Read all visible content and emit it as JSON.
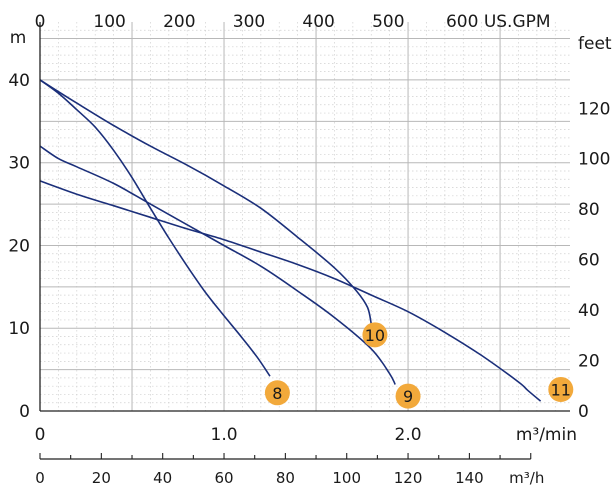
{
  "chart_data": {
    "type": "line",
    "title": "",
    "colors": {
      "curve": "#1b2f7a",
      "badge": "#f2a93b",
      "grid_major": "#b8b8b8",
      "grid_minor": "#d0d0d0",
      "axis": "#222222"
    },
    "axes": {
      "left": {
        "unit": "m",
        "range": [
          0,
          47
        ],
        "ticks": [
          0,
          10,
          20,
          30,
          40
        ],
        "tick_labels": [
          "0",
          "10",
          "20",
          "30",
          "40"
        ]
      },
      "right": {
        "unit": "feet",
        "ticks": [
          0,
          20,
          40,
          60,
          80,
          100,
          120
        ],
        "tick_labels": [
          "0",
          "20",
          "40",
          "60",
          "80",
          "100",
          "120"
        ]
      },
      "top": {
        "ticks": [
          0,
          100,
          200,
          300,
          400,
          500,
          600
        ],
        "tick_labels": [
          "0",
          "100",
          "200",
          "300",
          "400",
          "500",
          "600 US.GPM"
        ]
      },
      "bottom": {
        "unit": "m³/min",
        "range": [
          0,
          2.88
        ],
        "ticks": [
          0,
          1.0,
          2.0
        ],
        "tick_labels": [
          "0",
          "1.0",
          "2.0"
        ]
      },
      "lower": {
        "unit": "m³/h",
        "ticks": [
          0,
          20,
          40,
          60,
          80,
          100,
          120,
          140
        ],
        "tick_labels": [
          "0",
          "20",
          "40",
          "60",
          "80",
          "100",
          "120",
          "140"
        ]
      }
    },
    "series": [
      {
        "name": "8",
        "points": [
          [
            0,
            40
          ],
          [
            0.1,
            38.4
          ],
          [
            0.2,
            36.4
          ],
          [
            0.3,
            34.3
          ],
          [
            0.4,
            31.5
          ],
          [
            0.5,
            28.2
          ],
          [
            0.6,
            24.5
          ],
          [
            0.7,
            20.9
          ],
          [
            0.8,
            17.5
          ],
          [
            0.9,
            14.3
          ],
          [
            1.0,
            11.5
          ],
          [
            1.1,
            8.8
          ],
          [
            1.18,
            6.5
          ],
          [
            1.25,
            4.2
          ]
        ]
      },
      {
        "name": "9",
        "points": [
          [
            0,
            32
          ],
          [
            0.1,
            30.5
          ],
          [
            0.2,
            29.5
          ],
          [
            0.4,
            27.5
          ],
          [
            0.6,
            25
          ],
          [
            0.8,
            22.5
          ],
          [
            1.0,
            20
          ],
          [
            1.2,
            17.5
          ],
          [
            1.4,
            14.5
          ],
          [
            1.6,
            11.3
          ],
          [
            1.8,
            7.5
          ],
          [
            1.9,
            4.5
          ],
          [
            1.93,
            3.2
          ]
        ]
      },
      {
        "name": "10",
        "points": [
          [
            0,
            40
          ],
          [
            0.2,
            37.2
          ],
          [
            0.4,
            34.5
          ],
          [
            0.6,
            32
          ],
          [
            0.8,
            29.7
          ],
          [
            1.0,
            27.2
          ],
          [
            1.2,
            24.5
          ],
          [
            1.4,
            21
          ],
          [
            1.6,
            17.3
          ],
          [
            1.72,
            14.5
          ],
          [
            1.78,
            12.5
          ],
          [
            1.8,
            10.5
          ]
        ]
      },
      {
        "name": "11",
        "points": [
          [
            0,
            27.8
          ],
          [
            0.2,
            26.2
          ],
          [
            0.4,
            24.8
          ],
          [
            0.6,
            23.4
          ],
          [
            0.8,
            22
          ],
          [
            1.0,
            20.7
          ],
          [
            1.2,
            19.2
          ],
          [
            1.4,
            17.7
          ],
          [
            1.6,
            16
          ],
          [
            1.8,
            14
          ],
          [
            2.0,
            12
          ],
          [
            2.2,
            9.5
          ],
          [
            2.4,
            6.7
          ],
          [
            2.6,
            3.5
          ],
          [
            2.65,
            2.5
          ],
          [
            2.72,
            1.2
          ]
        ]
      }
    ]
  }
}
